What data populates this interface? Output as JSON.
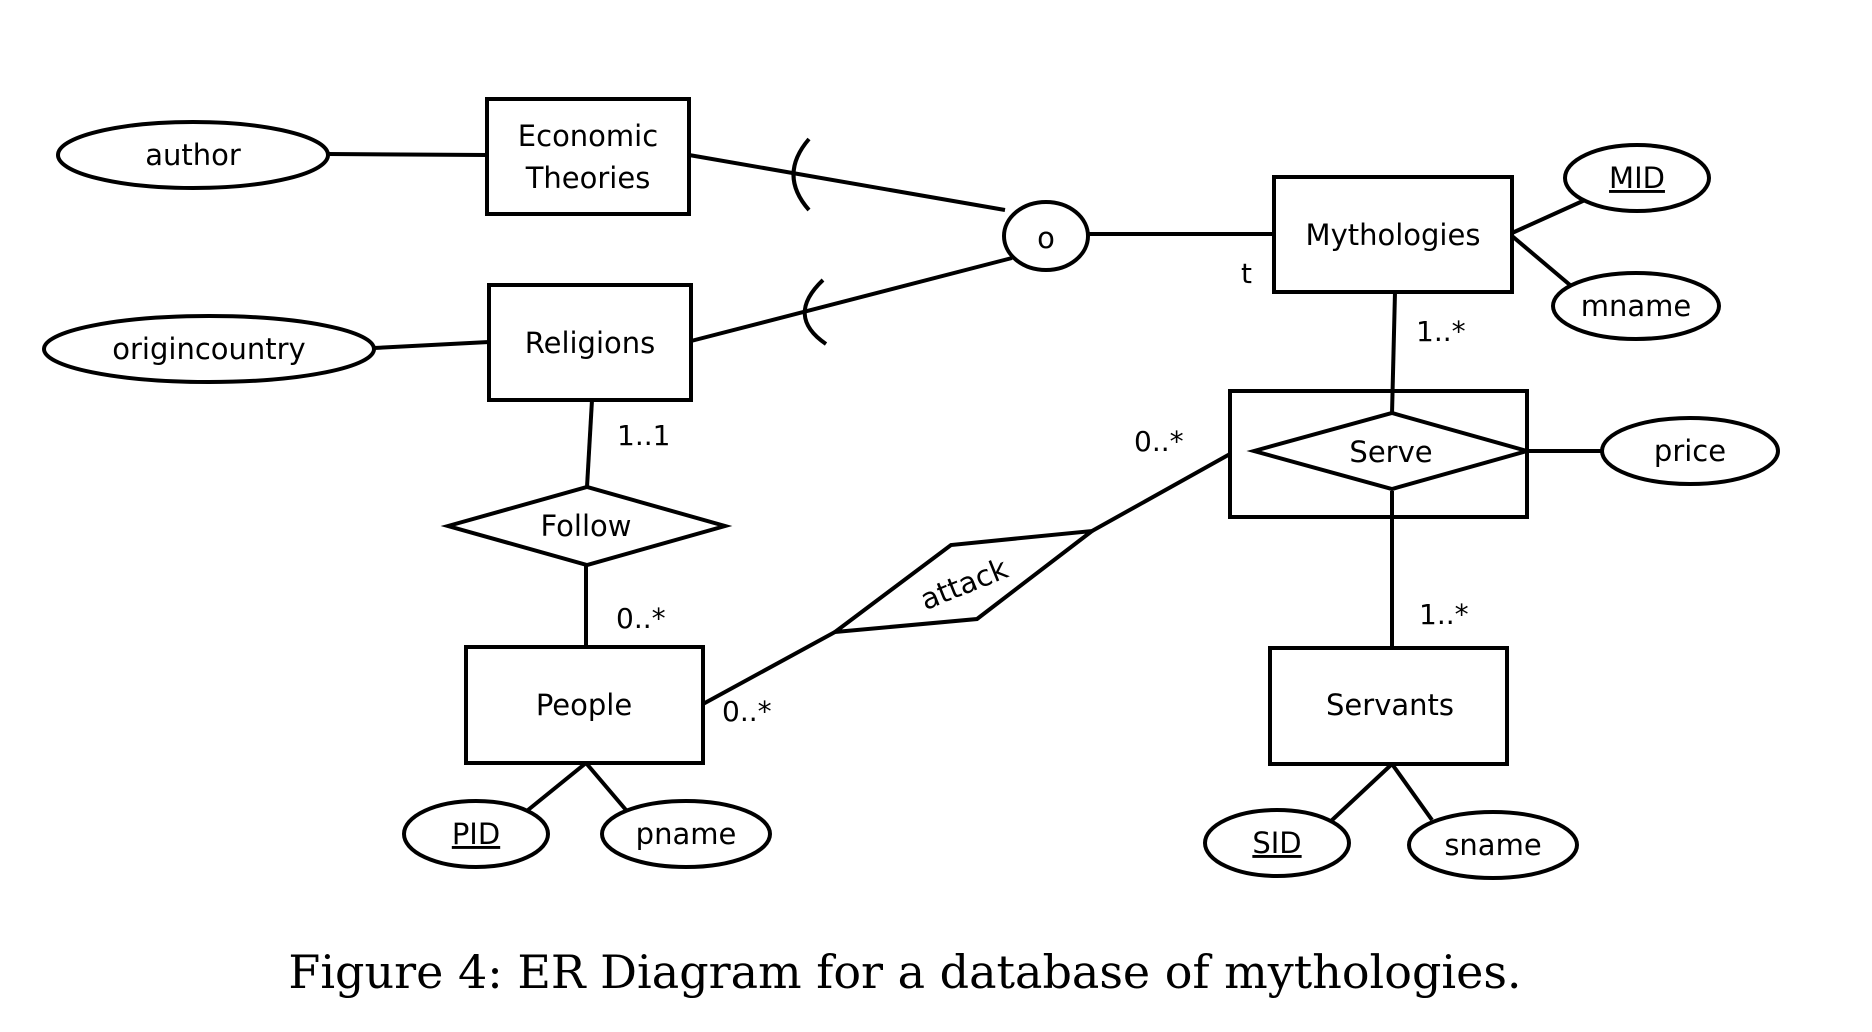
{
  "entities": {
    "economic_theories": [
      "Economic",
      "Theories"
    ],
    "religions": "Religions",
    "mythologies": "Mythologies",
    "people": "People",
    "servants": "Servants"
  },
  "relationships": {
    "follow": "Follow",
    "serve": "Serve",
    "attack": "attack"
  },
  "attributes": {
    "author": "author",
    "origincountry": "origincountry",
    "mid": "MID",
    "mname": "mname",
    "price": "price",
    "pid": "PID",
    "pname": "pname",
    "sid": "SID",
    "sname": "sname"
  },
  "specialization": {
    "overlap": "o",
    "total": "t"
  },
  "cardinalities": {
    "religions_follow": "1..1",
    "people_follow": "0..*",
    "people_attack": "0..*",
    "serve_attack": "0..*",
    "mythologies_serve": "1..*",
    "servants_serve": "1..*"
  },
  "caption": "Figure 4: ER Diagram for a database of mythologies."
}
